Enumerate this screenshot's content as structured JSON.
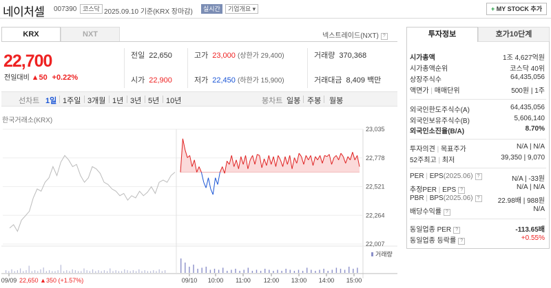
{
  "header": {
    "stock_name": "네이처셀",
    "stock_code": "007390",
    "market": "코스닥",
    "date": "2025.09.10 기준(KRX 장마감)",
    "realtime": "실시간",
    "company_overview": "기업개요 ▾",
    "mystock_plus": "+",
    "mystock_label": " MY STOCK 추가"
  },
  "tabs": {
    "krx": "KRX",
    "nxt": "NXT"
  },
  "nxt_label": "넥스트레이드(NXT)",
  "help_icon": "?",
  "quote": {
    "price": "22,700",
    "diff_label": "전일대비",
    "diff_arrow": "▲",
    "diff_value": "50",
    "diff_rate": "+0.22%",
    "prev_close_label": "전일",
    "prev_close": "22,650",
    "open_label": "시가",
    "open": "22,900",
    "high_label": "고가",
    "high": "23,000",
    "upper_limit": "(상한가 29,400)",
    "low_label": "저가",
    "low": "22,450",
    "lower_limit": "(하한가 15,900)",
    "volume_label": "거래량",
    "volume": "370,368",
    "amount_label": "거래대금",
    "amount": "8,409 백만"
  },
  "periods": {
    "line": "선차트",
    "items": [
      "1일",
      "1주일",
      "3개월",
      "1년",
      "3년",
      "5년",
      "10년"
    ],
    "selected": "1일",
    "candle": "봉차트",
    "candle_items": [
      "일봉",
      "주봉",
      "월봉"
    ]
  },
  "chart_source": "한국거래소(KRX)",
  "chart_data": {
    "type": "line",
    "yticks": [
      23035,
      22778,
      22521,
      22264,
      22007
    ],
    "ylim": [
      22007,
      23035
    ],
    "reference_price": 22650,
    "x_labels": [
      "09/09",
      "09/10",
      "10:00",
      "11:00",
      "12:00",
      "13:00",
      "14:00",
      "15:00"
    ],
    "volume_label": "거래량",
    "prev_day_summary": {
      "date": "09/09",
      "price": "22,650",
      "change": "▲350",
      "rate": "(+1.57%)"
    },
    "colors": {
      "prev_day": "#bbbbbb",
      "up": "#e02020",
      "down": "#1a55d6",
      "up_fill": "#fbdada",
      "volume": "#8a8fc9"
    },
    "today_series": [
      22650,
      22950,
      22850,
      22780,
      22800,
      22700,
      22760,
      22650,
      22700,
      22650,
      22560,
      22510,
      22600,
      22500,
      22450,
      22600,
      22540,
      22650,
      22700,
      22640,
      22750,
      22720,
      22800,
      22700,
      22760,
      22680,
      22790,
      22720,
      22800,
      22680,
      22760,
      22800,
      22720,
      22810,
      22800,
      22690,
      22770,
      22710,
      22800,
      22720,
      22790,
      22700,
      22800,
      22760,
      22700,
      22790,
      22720,
      22800,
      22680,
      22780,
      22730,
      22820,
      22790,
      22720,
      22800,
      22760,
      22800,
      22710,
      22790,
      22760,
      22800,
      22730,
      22800,
      22790,
      22810,
      22720,
      22780,
      22800,
      22760,
      22820,
      22790,
      22730,
      22790,
      22760,
      22830,
      22760,
      22800,
      22700
    ],
    "prev_day_series": [
      22150,
      22180,
      22120,
      22220,
      22260,
      22300,
      22420,
      22500,
      22480,
      22560,
      22600,
      22700,
      22620,
      22740,
      22800,
      22760,
      22700,
      22720,
      22620,
      22560,
      22600,
      22700,
      22680,
      22640,
      22560,
      22540,
      22500,
      22480,
      22440,
      22460,
      22400,
      22440,
      22420,
      22480,
      22440,
      22470,
      22520,
      22460,
      22560,
      22580,
      22560,
      22620,
      22650
    ]
  },
  "right": {
    "tab_on": "투자정보",
    "tab_off": "호가10단계",
    "market_cap_label": "시가총액",
    "market_cap": "1조 4,627억원",
    "rank_label": "시가총액순위",
    "rank": "코스닥 40위",
    "shares_label": "상장주식수",
    "shares": "64,435,056",
    "par_label": "액면가",
    "trade_unit_label": "매매단위",
    "par_unit": "500원 | 1주",
    "foreign_limit_label": "외국인한도주식수(A)",
    "foreign_limit": "64,435,056",
    "foreign_hold_label": "외국인보유주식수(B)",
    "foreign_hold": "5,606,140",
    "foreign_rate_label": "외국인소진율(B/A)",
    "foreign_rate": "8.70%",
    "opinion_label": "투자의견",
    "target_label": "목표주가",
    "opinion_value": "N/A | N/A",
    "w52_high_label": "52주최고",
    "w52_low_label": "최저",
    "w52_value": "39,350 | 9,070",
    "per_label": "PER",
    "eps_label": "EPS",
    "per_date": "(2025.06)",
    "per_value": "N/A | -33원",
    "est_per_label": "추정PER",
    "est_eps_label": "EPS",
    "est_value": "N/A | N/A",
    "pbr_label": "PBR",
    "bps_label": "BPS",
    "pbr_date": "(2025.06)",
    "pbr_value": "22.98배 | 988원",
    "dividend_label": "배당수익률",
    "dividend_value": "N/A",
    "industry_per_label": "동일업종 PER",
    "industry_per": "-113.65배",
    "industry_rate_label": "동일업종 등락률",
    "industry_rate": "+0.55%"
  }
}
